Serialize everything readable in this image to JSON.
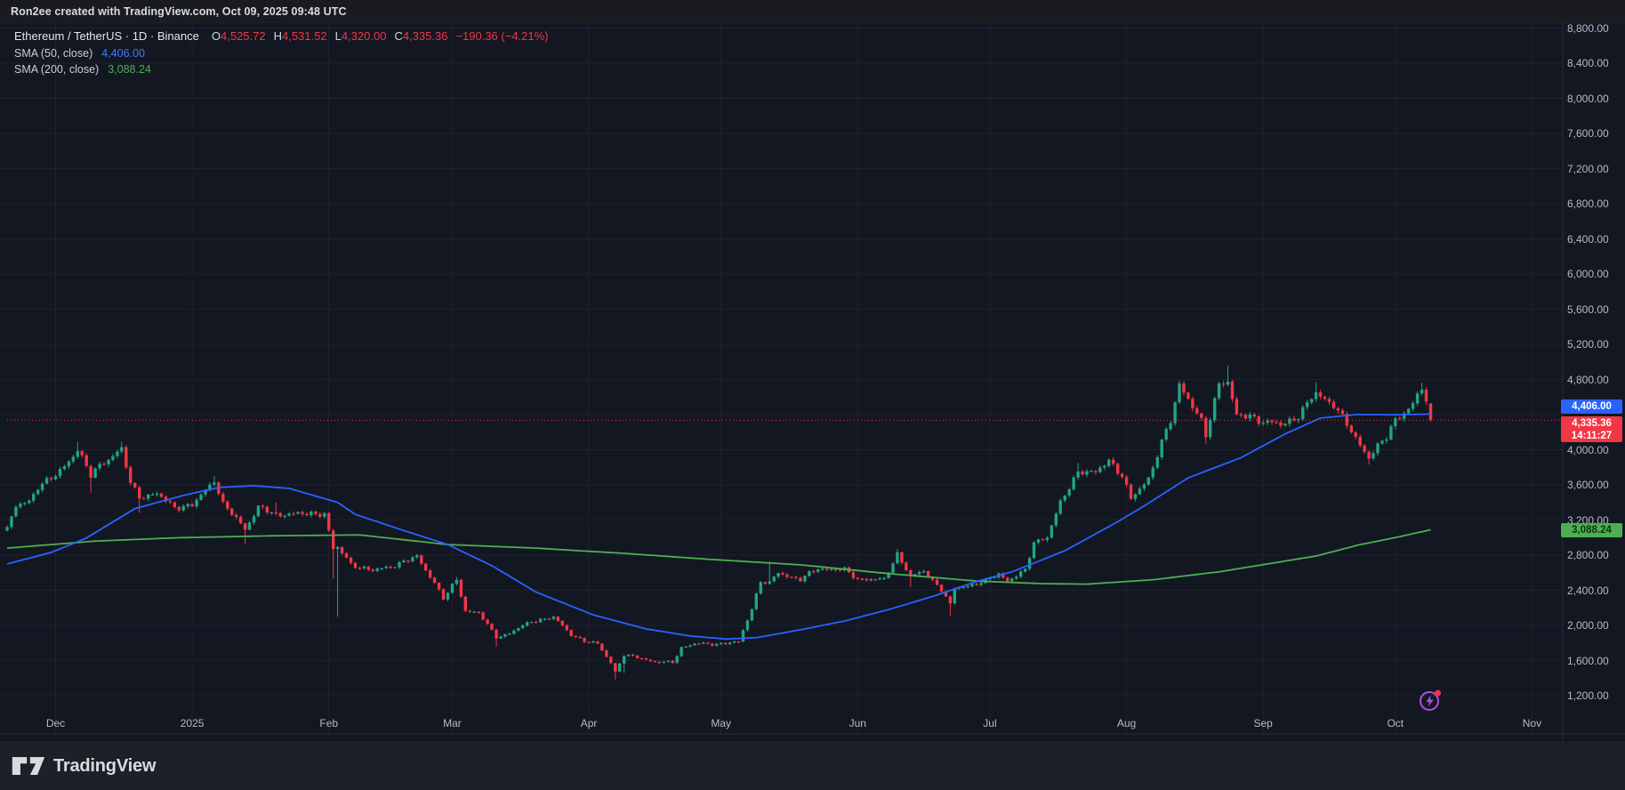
{
  "topbar": {
    "attribution": "Ron2ee created with TradingView.com, Oct 09, 2025 09:48 UTC"
  },
  "legend": {
    "title": "Ethereum / TetherUS · 1D · Binance",
    "ohlc": {
      "o_label": "O",
      "o": "4,525.72",
      "h_label": "H",
      "h": "4,531.52",
      "l_label": "L",
      "l": "4,320.00",
      "c_label": "C",
      "c": "4,335.36",
      "change": "−190.36 (−4.21%)"
    },
    "indicators": [
      {
        "name": "SMA (50, close)",
        "value": "4,406.00",
        "color": "#3b7dff"
      },
      {
        "name": "SMA (200, close)",
        "value": "3,088.24",
        "color": "#4caf50"
      }
    ]
  },
  "price_axis": {
    "labels": [
      {
        "text": "8,800.00",
        "value": 8800
      },
      {
        "text": "8,400.00",
        "value": 8400
      },
      {
        "text": "8,000.00",
        "value": 8000
      },
      {
        "text": "7,600.00",
        "value": 7600
      },
      {
        "text": "7,200.00",
        "value": 7200
      },
      {
        "text": "6,800.00",
        "value": 6800
      },
      {
        "text": "6,400.00",
        "value": 6400
      },
      {
        "text": "6,000.00",
        "value": 6000
      },
      {
        "text": "5,600.00",
        "value": 5600
      },
      {
        "text": "5,200.00",
        "value": 5200
      },
      {
        "text": "4,800.00",
        "value": 4800
      },
      {
        "text": "4,000.00",
        "value": 4000
      },
      {
        "text": "3,600.00",
        "value": 3600
      },
      {
        "text": "3,200.00",
        "value": 3200
      },
      {
        "text": "2,800.00",
        "value": 2800
      },
      {
        "text": "2,400.00",
        "value": 2400
      },
      {
        "text": "2,000.00",
        "value": 2000
      },
      {
        "text": "1,600.00",
        "value": 1600
      },
      {
        "text": "1,200.00",
        "value": 1200
      }
    ],
    "badges": {
      "sma50": {
        "text": "4,406.00",
        "value": 4406.0
      },
      "last": {
        "price": "4,335.36",
        "countdown": "14:11:27",
        "value": 4335.36
      },
      "sma200": {
        "text": "3,088.24",
        "value": 3088.24
      }
    }
  },
  "time_axis": {
    "labels": [
      {
        "label": "Dec",
        "day": 11
      },
      {
        "label": "2025",
        "day": 42
      },
      {
        "label": "Feb",
        "day": 73
      },
      {
        "label": "Mar",
        "day": 101
      },
      {
        "label": "Apr",
        "day": 132
      },
      {
        "label": "May",
        "day": 162
      },
      {
        "label": "Jun",
        "day": 193
      },
      {
        "label": "Jul",
        "day": 223
      },
      {
        "label": "Aug",
        "day": 254
      },
      {
        "label": "Sep",
        "day": 285
      },
      {
        "label": "Oct",
        "day": 315
      },
      {
        "label": "Nov",
        "day": 346
      }
    ]
  },
  "footer": {
    "brand": "TradingView"
  },
  "colors": {
    "bg": "#131722",
    "topbar_bg": "#1a1b20",
    "footer_bg": "#1d2027",
    "grid": "#1e222d",
    "border": "#2a2e39",
    "candle_up": "#20a583",
    "candle_down": "#f23645",
    "sma50": "#2962ff",
    "sma200": "#4caf50",
    "price_line": "#f23645",
    "label_blue_bg": "#2962ff",
    "label_red_bg": "#f23645",
    "label_green_bg": "#4caf50",
    "axis_text": "#b6bac4",
    "watermark": "#b14ee8"
  },
  "chart_data": {
    "type": "candlestick",
    "title": "Ethereum / TetherUS",
    "interval": "1D",
    "exchange": "Binance",
    "x_start_date": "2024-11-20",
    "x_end_date": "2025-10-09",
    "days_total": 324,
    "y_tick_step": 400,
    "y_tick_range": [
      1200,
      8800
    ],
    "grid": true,
    "last_candle": {
      "open": 4525.72,
      "high": 4531.52,
      "low": 4320.0,
      "close": 4335.36,
      "change": -190.36,
      "change_pct": -4.21
    },
    "close_anchors": [
      [
        0,
        3100,
        null,
        null
      ],
      [
        2,
        3350,
        null,
        null
      ],
      [
        5,
        3420,
        null,
        null
      ],
      [
        7,
        3580,
        null,
        null
      ],
      [
        11,
        3700,
        null,
        null
      ],
      [
        14,
        3880,
        null,
        null
      ],
      [
        16,
        4000,
        4090,
        null
      ],
      [
        19,
        3700,
        null,
        3510
      ],
      [
        21,
        3830,
        null,
        null
      ],
      [
        23,
        3900,
        null,
        null
      ],
      [
        26,
        4000,
        4090,
        null
      ],
      [
        28,
        3620,
        null,
        null
      ],
      [
        30,
        3470,
        null,
        3280
      ],
      [
        34,
        3490,
        null,
        null
      ],
      [
        38,
        3350,
        null,
        null
      ],
      [
        42,
        3360,
        null,
        null
      ],
      [
        47,
        3660,
        3700,
        null
      ],
      [
        49,
        3380,
        null,
        null
      ],
      [
        54,
        3100,
        null,
        2920
      ],
      [
        57,
        3350,
        null,
        null
      ],
      [
        61,
        3250,
        3400,
        null
      ],
      [
        64,
        3280,
        null,
        null
      ],
      [
        68,
        3260,
        null,
        null
      ],
      [
        72,
        3280,
        null,
        null
      ],
      [
        74,
        2870,
        null,
        2530
      ],
      [
        75,
        2880,
        null,
        2100
      ],
      [
        78,
        2700,
        null,
        null
      ],
      [
        83,
        2620,
        null,
        null
      ],
      [
        88,
        2690,
        null,
        null
      ],
      [
        93,
        2780,
        null,
        null
      ],
      [
        97,
        2490,
        null,
        null
      ],
      [
        99,
        2300,
        null,
        null
      ],
      [
        102,
        2520,
        2550,
        null
      ],
      [
        104,
        2170,
        null,
        null
      ],
      [
        107,
        2140,
        null,
        null
      ],
      [
        111,
        1870,
        null,
        1760
      ],
      [
        114,
        1910,
        null,
        null
      ],
      [
        119,
        2050,
        null,
        null
      ],
      [
        124,
        2090,
        null,
        null
      ],
      [
        128,
        1900,
        null,
        null
      ],
      [
        131,
        1820,
        null,
        null
      ],
      [
        134,
        1790,
        null,
        null
      ],
      [
        137,
        1580,
        null,
        null
      ],
      [
        138,
        1470,
        null,
        1385
      ],
      [
        140,
        1660,
        null,
        1460
      ],
      [
        144,
        1630,
        null,
        null
      ],
      [
        147,
        1580,
        null,
        null
      ],
      [
        151,
        1580,
        null,
        null
      ],
      [
        153,
        1750,
        null,
        null
      ],
      [
        156,
        1790,
        null,
        null
      ],
      [
        161,
        1790,
        null,
        null
      ],
      [
        166,
        1810,
        null,
        null
      ],
      [
        169,
        2200,
        null,
        null
      ],
      [
        171,
        2500,
        null,
        null
      ],
      [
        173,
        2480,
        2730,
        null
      ],
      [
        175,
        2600,
        null,
        null
      ],
      [
        180,
        2520,
        null,
        null
      ],
      [
        184,
        2650,
        null,
        null
      ],
      [
        190,
        2630,
        null,
        null
      ],
      [
        193,
        2530,
        null,
        null
      ],
      [
        199,
        2520,
        null,
        null
      ],
      [
        202,
        2820,
        2870,
        null
      ],
      [
        205,
        2550,
        null,
        2440
      ],
      [
        208,
        2620,
        null,
        null
      ],
      [
        212,
        2410,
        null,
        null
      ],
      [
        214,
        2230,
        null,
        2110
      ],
      [
        215,
        2420,
        null,
        null
      ],
      [
        222,
        2500,
        null,
        null
      ],
      [
        225,
        2590,
        null,
        null
      ],
      [
        227,
        2510,
        null,
        null
      ],
      [
        231,
        2620,
        null,
        null
      ],
      [
        233,
        2950,
        null,
        null
      ],
      [
        236,
        3010,
        null,
        null
      ],
      [
        239,
        3390,
        null,
        null
      ],
      [
        243,
        3760,
        3850,
        null
      ],
      [
        247,
        3730,
        null,
        null
      ],
      [
        250,
        3890,
        null,
        null
      ],
      [
        253,
        3700,
        null,
        null
      ],
      [
        255,
        3430,
        null,
        null
      ],
      [
        259,
        3680,
        null,
        null
      ],
      [
        262,
        4080,
        null,
        null
      ],
      [
        264,
        4320,
        null,
        null
      ],
      [
        266,
        4750,
        4790,
        null
      ],
      [
        268,
        4590,
        null,
        null
      ],
      [
        271,
        4310,
        null,
        null
      ],
      [
        272,
        4150,
        null,
        4070
      ],
      [
        275,
        4770,
        null,
        null
      ],
      [
        277,
        4780,
        4956,
        null
      ],
      [
        279,
        4370,
        null,
        null
      ],
      [
        282,
        4390,
        null,
        null
      ],
      [
        285,
        4320,
        null,
        null
      ],
      [
        289,
        4280,
        null,
        null
      ],
      [
        293,
        4390,
        null,
        null
      ],
      [
        297,
        4640,
        4770,
        null
      ],
      [
        301,
        4520,
        null,
        null
      ],
      [
        305,
        4200,
        null,
        null
      ],
      [
        309,
        3920,
        null,
        3830
      ],
      [
        313,
        4140,
        null,
        null
      ],
      [
        315,
        4350,
        null,
        null
      ],
      [
        319,
        4510,
        null,
        null
      ],
      [
        321,
        4700,
        4760,
        null
      ],
      [
        322,
        4550,
        null,
        null
      ],
      [
        323,
        4335.36,
        null,
        null
      ]
    ],
    "sma50": {
      "period": 50,
      "current_value": 4406.0,
      "anchors": [
        [
          0,
          2700
        ],
        [
          10,
          2830
        ],
        [
          18,
          2995
        ],
        [
          29,
          3330
        ],
        [
          40,
          3480
        ],
        [
          48,
          3570
        ],
        [
          56,
          3590
        ],
        [
          64,
          3560
        ],
        [
          75,
          3400
        ],
        [
          79,
          3264
        ],
        [
          90,
          3080
        ],
        [
          100,
          2920
        ],
        [
          110,
          2680
        ],
        [
          120,
          2380
        ],
        [
          133,
          2120
        ],
        [
          145,
          1960
        ],
        [
          155,
          1880
        ],
        [
          163,
          1845
        ],
        [
          170,
          1860
        ],
        [
          180,
          1950
        ],
        [
          190,
          2050
        ],
        [
          200,
          2180
        ],
        [
          210,
          2330
        ],
        [
          220,
          2500
        ],
        [
          228,
          2610
        ],
        [
          240,
          2850
        ],
        [
          252,
          3180
        ],
        [
          258,
          3360
        ],
        [
          268,
          3680
        ],
        [
          280,
          3910
        ],
        [
          290,
          4180
        ],
        [
          298,
          4360
        ],
        [
          306,
          4400
        ],
        [
          315,
          4398
        ],
        [
          323,
          4406
        ]
      ]
    },
    "sma200": {
      "period": 200,
      "current_value": 3088.24,
      "anchors": [
        [
          0,
          2880
        ],
        [
          20,
          2960
        ],
        [
          40,
          3000
        ],
        [
          60,
          3020
        ],
        [
          80,
          3030
        ],
        [
          100,
          2920
        ],
        [
          120,
          2880
        ],
        [
          140,
          2820
        ],
        [
          160,
          2750
        ],
        [
          180,
          2690
        ],
        [
          200,
          2590
        ],
        [
          220,
          2505
        ],
        [
          235,
          2475
        ],
        [
          245,
          2470
        ],
        [
          260,
          2520
        ],
        [
          275,
          2610
        ],
        [
          297,
          2790
        ],
        [
          307,
          2920
        ],
        [
          315,
          3000
        ],
        [
          323,
          3088.24
        ]
      ]
    }
  }
}
